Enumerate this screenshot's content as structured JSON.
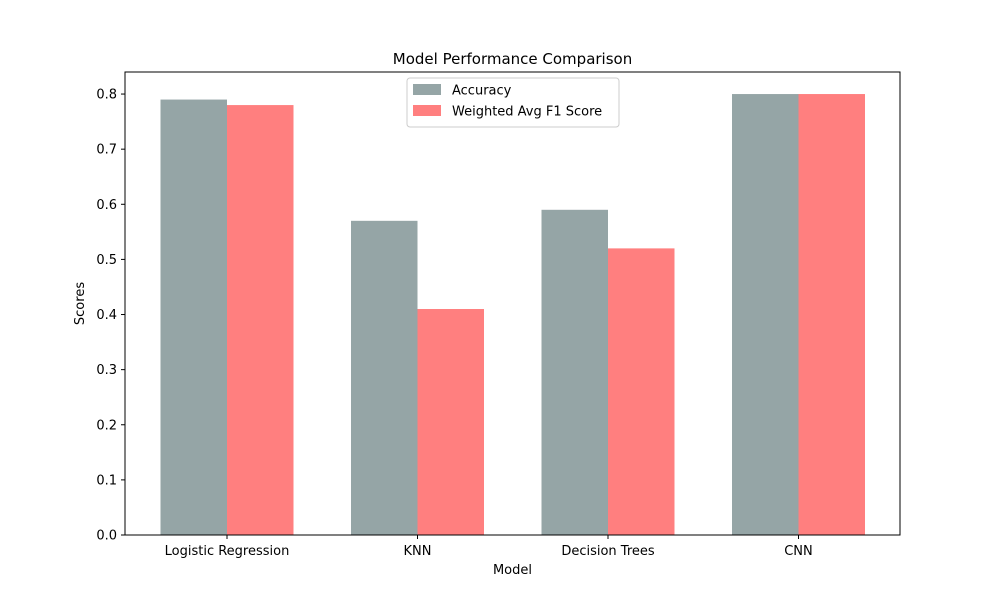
{
  "chart_data": {
    "type": "bar",
    "title": "Model Performance Comparison",
    "xlabel": "Model",
    "ylabel": "Scores",
    "categories": [
      "Logistic Regression",
      "KNN",
      "Decision Trees",
      "CNN"
    ],
    "series": [
      {
        "name": "Accuracy",
        "values": [
          0.79,
          0.57,
          0.59,
          0.8
        ],
        "color": "#95a5a6"
      },
      {
        "name": "Weighted Avg F1 Score",
        "values": [
          0.78,
          0.41,
          0.52,
          0.8
        ],
        "color": "#ff7f7f"
      }
    ],
    "ylim": [
      0,
      0.84
    ],
    "yticks": [
      0.0,
      0.1,
      0.2,
      0.3,
      0.4,
      0.5,
      0.6,
      0.7,
      0.8
    ],
    "ytick_labels": [
      "0.0",
      "0.1",
      "0.2",
      "0.3",
      "0.4",
      "0.5",
      "0.6",
      "0.7",
      "0.8"
    ],
    "legend_position": "top-center",
    "grid": false
  }
}
